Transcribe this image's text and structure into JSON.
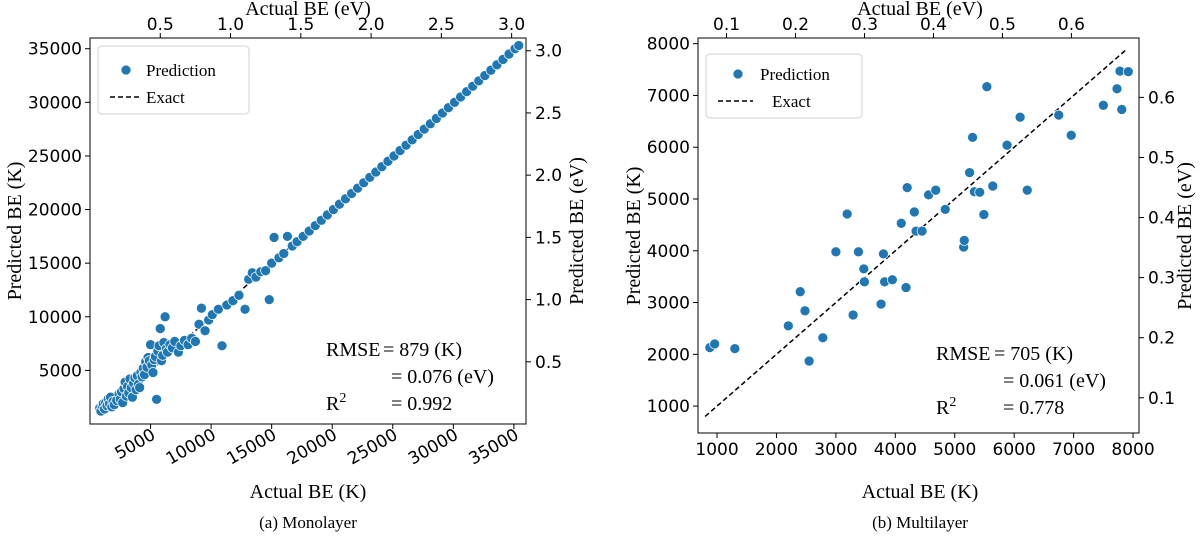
{
  "figure": {
    "caption_a": "(a) Monolayer",
    "caption_b": "(b) Multilayer"
  },
  "chart_data": [
    {
      "type": "scatter",
      "panel": "a",
      "caption": "(a) Monolayer",
      "xlabel": "Actual BE (K)",
      "ylabel": "Predicted BE (K)",
      "top_xlabel": "Actual BE (eV)",
      "right_ylabel": "Predicted BE (eV)",
      "xlim": [
        0,
        36000
      ],
      "ylim": [
        0,
        36000
      ],
      "x_ticks": [
        5000,
        10000,
        15000,
        20000,
        25000,
        30000,
        35000
      ],
      "y_ticks": [
        5000,
        10000,
        15000,
        20000,
        25000,
        30000,
        35000
      ],
      "top_ticks": [
        "0.5",
        "1.0",
        "1.5",
        "2.0",
        "2.5",
        "3.0"
      ],
      "right_ticks": [
        "0.5",
        "1.0",
        "1.5",
        "2.0",
        "2.5",
        "3.0"
      ],
      "ev_to_K": 11604.5,
      "grid": false,
      "legend_position": "top-left",
      "legend": [
        "Prediction",
        "Exact"
      ],
      "annotations": {
        "rmse_label": "RMSE",
        "rmse_k": "= 879 (K)",
        "rmse_ev": "= 0.076 (eV)",
        "r2_label": "R",
        "r2_sup": "2",
        "r2_value": "= 0.992"
      },
      "exact_line": [
        [
          800,
          800
        ],
        [
          35600,
          35600
        ]
      ],
      "series": [
        {
          "name": "Prediction",
          "color": "#1f77b4",
          "points": [
            [
              800,
              1500
            ],
            [
              900,
              1200
            ],
            [
              1000,
              1700
            ],
            [
              1100,
              1900
            ],
            [
              1200,
              1400
            ],
            [
              1300,
              2000
            ],
            [
              1400,
              1700
            ],
            [
              1500,
              2300
            ],
            [
              1600,
              1900
            ],
            [
              1700,
              2500
            ],
            [
              1800,
              1600
            ],
            [
              1900,
              2100
            ],
            [
              2000,
              1800
            ],
            [
              2200,
              2200
            ],
            [
              2400,
              2800
            ],
            [
              2500,
              2300
            ],
            [
              2600,
              3000
            ],
            [
              2700,
              2000
            ],
            [
              2800,
              3300
            ],
            [
              2900,
              3900
            ],
            [
              3000,
              2600
            ],
            [
              3100,
              3500
            ],
            [
              3200,
              2900
            ],
            [
              3300,
              4200
            ],
            [
              3400,
              3400
            ],
            [
              3500,
              2500
            ],
            [
              3600,
              3800
            ],
            [
              3700,
              4300
            ],
            [
              3800,
              3200
            ],
            [
              3900,
              4500
            ],
            [
              4000,
              3700
            ],
            [
              4100,
              3400
            ],
            [
              4200,
              4800
            ],
            [
              4300,
              4400
            ],
            [
              4400,
              5200
            ],
            [
              4500,
              4600
            ],
            [
              4600,
              5800
            ],
            [
              4700,
              5300
            ],
            [
              4800,
              6200
            ],
            [
              4900,
              5900
            ],
            [
              5000,
              7400
            ],
            [
              5100,
              5500
            ],
            [
              5200,
              4800
            ],
            [
              5300,
              6000
            ],
            [
              5400,
              6300
            ],
            [
              5500,
              2300
            ],
            [
              5600,
              6800
            ],
            [
              5700,
              7300
            ],
            [
              5800,
              8900
            ],
            [
              5900,
              5900
            ],
            [
              6000,
              6400
            ],
            [
              6100,
              7600
            ],
            [
              6200,
              10000
            ],
            [
              6300,
              7000
            ],
            [
              6400,
              6700
            ],
            [
              6600,
              7400
            ],
            [
              6800,
              7100
            ],
            [
              7000,
              7700
            ],
            [
              7300,
              6700
            ],
            [
              7500,
              7300
            ],
            [
              7800,
              7800
            ],
            [
              8100,
              7400
            ],
            [
              8400,
              8000
            ],
            [
              8700,
              7700
            ],
            [
              9000,
              9300
            ],
            [
              9200,
              10800
            ],
            [
              9500,
              8700
            ],
            [
              9800,
              9700
            ],
            [
              10100,
              10200
            ],
            [
              10600,
              10700
            ],
            [
              10900,
              7300
            ],
            [
              11300,
              11100
            ],
            [
              11800,
              11500
            ],
            [
              12300,
              12000
            ],
            [
              12800,
              10700
            ],
            [
              13100,
              13500
            ],
            [
              13400,
              14100
            ],
            [
              13700,
              13700
            ],
            [
              14100,
              14200
            ],
            [
              14500,
              14300
            ],
            [
              14800,
              11600
            ],
            [
              15000,
              15000
            ],
            [
              15200,
              17400
            ],
            [
              15600,
              15500
            ],
            [
              16000,
              15900
            ],
            [
              16300,
              17500
            ],
            [
              16700,
              16600
            ],
            [
              17100,
              17000
            ],
            [
              17600,
              17500
            ],
            [
              18100,
              18000
            ],
            [
              18600,
              18500
            ],
            [
              19100,
              19000
            ],
            [
              19600,
              19500
            ],
            [
              20100,
              20000
            ],
            [
              20600,
              20500
            ],
            [
              21100,
              21000
            ],
            [
              21600,
              21500
            ],
            [
              22100,
              22000
            ],
            [
              22600,
              22500
            ],
            [
              23100,
              23000
            ],
            [
              23600,
              23500
            ],
            [
              24100,
              24000
            ],
            [
              24600,
              24500
            ],
            [
              25100,
              25000
            ],
            [
              25600,
              25500
            ],
            [
              26100,
              26000
            ],
            [
              26600,
              26500
            ],
            [
              27100,
              27000
            ],
            [
              27600,
              27500
            ],
            [
              28100,
              28000
            ],
            [
              28600,
              28500
            ],
            [
              29100,
              29000
            ],
            [
              29600,
              29500
            ],
            [
              30100,
              30000
            ],
            [
              30600,
              30500
            ],
            [
              31100,
              31000
            ],
            [
              31600,
              31500
            ],
            [
              32100,
              32000
            ],
            [
              32600,
              32500
            ],
            [
              33100,
              33000
            ],
            [
              33600,
              33500
            ],
            [
              34100,
              34000
            ],
            [
              34600,
              34500
            ],
            [
              35100,
              35000
            ],
            [
              35400,
              35300
            ]
          ]
        }
      ]
    },
    {
      "type": "scatter",
      "panel": "b",
      "caption": "(b) Multilayer",
      "xlabel": "Actual BE (K)",
      "ylabel": "Predicted BE (K)",
      "top_xlabel": "Actual BE (eV)",
      "right_ylabel": "Predicted BE (eV)",
      "xlim": [
        680,
        8100
      ],
      "ylim": [
        480,
        8110
      ],
      "x_ticks": [
        1000,
        2000,
        3000,
        4000,
        5000,
        6000,
        7000,
        8000
      ],
      "y_ticks": [
        1000,
        2000,
        3000,
        4000,
        5000,
        6000,
        7000,
        8000
      ],
      "top_ticks": [
        "0.1",
        "0.2",
        "0.3",
        "0.4",
        "0.5",
        "0.6"
      ],
      "right_ticks": [
        "0.1",
        "0.2",
        "0.3",
        "0.4",
        "0.5",
        "0.6"
      ],
      "ev_to_K": 11604.5,
      "grid": false,
      "legend_position": "top-left",
      "legend": [
        "Prediction",
        "Exact"
      ],
      "annotations": {
        "rmse_label": "RMSE",
        "rmse_k": "= 705 (K)",
        "rmse_ev": "= 0.061 (eV)",
        "r2_label": "R",
        "r2_sup": "2",
        "r2_value": "= 0.778"
      },
      "exact_line": [
        [
          800,
          800
        ],
        [
          7900,
          7900
        ]
      ],
      "series": [
        {
          "name": "Prediction",
          "color": "#1f77b4",
          "points": [
            [
              880,
              2130
            ],
            [
              960,
              2200
            ],
            [
              1300,
              2110
            ],
            [
              2200,
              2550
            ],
            [
              2400,
              3210
            ],
            [
              2480,
              2840
            ],
            [
              2550,
              1870
            ],
            [
              2780,
              2320
            ],
            [
              3000,
              3980
            ],
            [
              3190,
              4710
            ],
            [
              3290,
              2760
            ],
            [
              3380,
              3980
            ],
            [
              3470,
              3650
            ],
            [
              3480,
              3400
            ],
            [
              3760,
              2970
            ],
            [
              3800,
              3940
            ],
            [
              3820,
              3400
            ],
            [
              3950,
              3440
            ],
            [
              4100,
              4530
            ],
            [
              4180,
              3290
            ],
            [
              4200,
              5220
            ],
            [
              4320,
              4750
            ],
            [
              4350,
              4380
            ],
            [
              4450,
              4380
            ],
            [
              4560,
              5080
            ],
            [
              4680,
              5170
            ],
            [
              4840,
              4800
            ],
            [
              5150,
              4070
            ],
            [
              5160,
              4200
            ],
            [
              5250,
              5510
            ],
            [
              5300,
              6190
            ],
            [
              5330,
              5140
            ],
            [
              5420,
              5130
            ],
            [
              5490,
              4700
            ],
            [
              5540,
              7170
            ],
            [
              5640,
              5250
            ],
            [
              5880,
              6040
            ],
            [
              6100,
              6580
            ],
            [
              6220,
              5170
            ],
            [
              6750,
              6620
            ],
            [
              6960,
              6230
            ],
            [
              7500,
              6810
            ],
            [
              7730,
              7130
            ],
            [
              7780,
              7470
            ],
            [
              7810,
              6730
            ],
            [
              7920,
              7460
            ]
          ]
        }
      ]
    }
  ]
}
